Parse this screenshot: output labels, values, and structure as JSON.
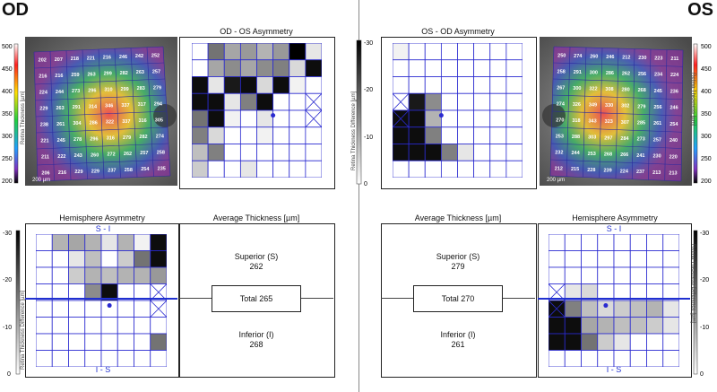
{
  "od": {
    "eye_label": "OD",
    "fundus_scale_bar": "200 µm",
    "fundus_grid": [
      [
        202,
        207,
        218,
        221,
        216,
        246,
        242,
        252
      ],
      [
        216,
        216,
        259,
        263,
        299,
        282,
        263,
        257
      ],
      [
        224,
        244,
        273,
        296,
        310,
        299,
        283,
        279
      ],
      [
        229,
        263,
        291,
        314,
        346,
        337,
        317,
        294
      ],
      [
        238,
        261,
        304,
        286,
        322,
        337,
        316,
        305
      ],
      [
        221,
        245,
        278,
        296,
        316,
        279,
        282,
        274
      ],
      [
        211,
        222,
        243,
        260,
        272,
        262,
        257,
        258
      ],
      [
        206,
        216,
        229,
        229,
        237,
        258,
        254,
        235
      ]
    ],
    "asym_title": "OD - OS Asymmetry",
    "hemi_title": "Hemisphere Asymmetry",
    "hemi_top_label": "S - I",
    "hemi_bottom_label": "I - S",
    "avg_title": "Average Thickness [µm]",
    "superior_label": "Superior (S)",
    "superior_value": "262",
    "total_label": "Total 265",
    "inferior_label": "Inferior (I)",
    "inferior_value": "268"
  },
  "os": {
    "eye_label": "OS",
    "fundus_scale_bar": "200 µm",
    "fundus_grid": [
      [
        250,
        274,
        260,
        246,
        212,
        230,
        223,
        211
      ],
      [
        258,
        291,
        300,
        286,
        262,
        256,
        234,
        224
      ],
      [
        267,
        300,
        322,
        308,
        280,
        268,
        245,
        236
      ],
      [
        274,
        326,
        349,
        330,
        302,
        279,
        256,
        246
      ],
      [
        270,
        318,
        343,
        323,
        307,
        285,
        261,
        254
      ],
      [
        253,
        288,
        303,
        297,
        284,
        273,
        257,
        240
      ],
      [
        232,
        244,
        253,
        268,
        266,
        241,
        230,
        220
      ],
      [
        212,
        215,
        228,
        239,
        224,
        237,
        213,
        213
      ]
    ],
    "asym_title": "OS - OD Asymmetry",
    "hemi_title": "Hemisphere Asymmetry",
    "hemi_top_label": "S - I",
    "hemi_bottom_label": "I - S",
    "avg_title": "Average Thickness [µm]",
    "superior_label": "Superior (S)",
    "superior_value": "279",
    "total_label": "Total 270",
    "inferior_label": "Inferior (I)",
    "inferior_value": "261"
  },
  "thickness_colorbar": {
    "ticks": [
      "500",
      "450",
      "400",
      "350",
      "300",
      "250",
      "200"
    ],
    "label": "Retina Thickness [µm]"
  },
  "difference_colorbar": {
    "ticks": [
      "-30",
      "-20",
      "-10",
      "0"
    ],
    "label": "Retina Thickness Difference [µm]"
  },
  "od_asym_cells": [
    [
      0,
      0,
      0,
      0,
      0,
      0,
      1,
      0
    ],
    [
      0,
      2,
      2,
      2,
      2,
      2,
      2,
      1
    ],
    [
      0,
      1,
      2,
      3,
      1,
      1,
      0,
      3
    ],
    [
      1,
      1,
      1,
      1,
      1,
      0,
      0,
      0
    ],
    [
      1,
      1,
      0,
      0,
      0,
      0,
      0,
      0
    ],
    [
      0,
      1,
      0,
      0,
      0,
      0,
      0,
      0
    ],
    [
      0,
      1,
      0,
      0,
      0,
      0,
      0,
      0
    ],
    [
      0,
      0,
      0,
      0,
      0,
      0,
      0,
      0
    ]
  ],
  "od_asym_shades": [
    [
      0,
      0,
      0,
      0,
      0,
      0,
      0,
      0
    ],
    [
      0,
      0.35,
      0.45,
      0.35,
      0.45,
      0.5,
      0,
      0.1
    ],
    [
      0,
      0.1,
      0.9,
      0.95,
      0.35,
      0.2,
      0,
      0.95
    ],
    [
      0.95,
      0.95,
      0.1,
      0.5,
      0.95,
      0,
      0,
      0
    ],
    [
      0.95,
      0.95,
      0.05,
      0,
      0,
      0,
      0,
      0
    ],
    [
      0,
      0.15,
      0,
      0,
      0,
      0,
      0,
      0
    ],
    [
      0,
      0.5,
      0,
      0,
      0,
      0,
      0,
      0
    ],
    [
      0,
      0,
      0,
      0,
      0,
      0,
      0,
      0
    ]
  ],
  "od_asym_fill": [
    [
      0,
      0.55,
      0.35,
      0.4,
      0.3,
      0.4,
      1.0,
      0.1
    ],
    [
      0,
      0.35,
      0.45,
      0.35,
      0.45,
      0.5,
      0.15,
      0.95
    ],
    [
      0.95,
      0.1,
      0.9,
      0.95,
      0.15,
      0.95,
      0.05,
      0.0
    ],
    [
      0.95,
      0.95,
      0.1,
      0.5,
      0.95,
      0.0,
      0,
      0
    ],
    [
      0.55,
      0.95,
      0.05,
      0,
      0.1,
      0.0,
      0,
      0
    ],
    [
      0.5,
      0.15,
      0,
      0,
      0.05,
      0,
      0,
      0
    ],
    [
      0.25,
      0.5,
      0,
      0,
      0,
      0,
      0,
      0
    ],
    [
      0.2,
      0,
      0,
      0.1,
      0,
      0,
      0,
      0
    ]
  ],
  "os_asym_fill": [
    [
      0.05,
      0,
      0,
      0,
      0,
      0,
      0,
      0
    ],
    [
      0,
      0,
      0,
      0,
      0,
      0,
      0,
      0
    ],
    [
      0,
      0,
      0,
      0,
      0,
      0,
      0,
      0
    ],
    [
      0,
      0.9,
      0.45,
      0,
      0,
      0,
      0,
      0
    ],
    [
      0.95,
      0.95,
      0.3,
      0,
      0,
      0,
      0,
      0
    ],
    [
      0.95,
      0.95,
      0.5,
      0,
      0,
      0,
      0,
      0
    ],
    [
      0.95,
      0.95,
      0.95,
      0.5,
      0.1,
      0,
      0,
      0
    ],
    [
      0,
      0,
      0,
      0,
      0,
      0,
      0,
      0
    ]
  ],
  "od_hemi_fill": [
    [
      0,
      0.3,
      0.35,
      0.3,
      0.1,
      0.3,
      0.05,
      0.95
    ],
    [
      0,
      0,
      0.1,
      0.25,
      0,
      0.2,
      0.55,
      0.95
    ],
    [
      0,
      0,
      0.2,
      0.3,
      0.25,
      0.3,
      0.3,
      0.4
    ],
    [
      0,
      0,
      0,
      0.45,
      0.95,
      0,
      0,
      0
    ],
    [
      0,
      0,
      0,
      0,
      0,
      0,
      0,
      0
    ],
    [
      0,
      0,
      0,
      0,
      0,
      0,
      0,
      0
    ],
    [
      0,
      0,
      0,
      0,
      0,
      0,
      0,
      0.55
    ],
    [
      0,
      0,
      0,
      0,
      0,
      0,
      0,
      0
    ]
  ],
  "os_hemi_fill": [
    [
      0,
      0,
      0,
      0,
      0,
      0,
      0,
      0
    ],
    [
      0,
      0,
      0,
      0,
      0,
      0,
      0,
      0
    ],
    [
      0,
      0,
      0,
      0,
      0,
      0,
      0,
      0
    ],
    [
      0,
      0.1,
      0.15,
      0,
      0,
      0,
      0,
      0
    ],
    [
      0.95,
      0.5,
      0.25,
      0.15,
      0.2,
      0.25,
      0.3,
      0.1
    ],
    [
      0.95,
      0.95,
      0.35,
      0.3,
      0.25,
      0.25,
      0.2,
      0.1
    ],
    [
      0.95,
      0.95,
      0.55,
      0.2,
      0.1,
      0,
      0,
      0
    ],
    [
      0,
      0,
      0,
      0,
      0,
      0,
      0,
      0
    ]
  ]
}
